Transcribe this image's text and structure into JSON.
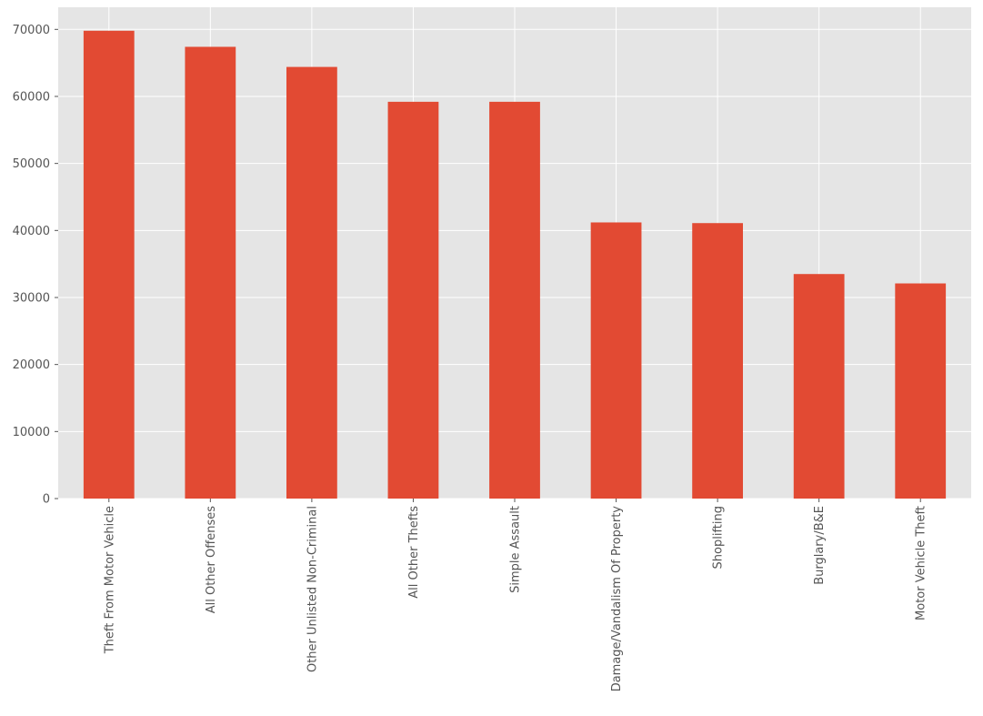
{
  "chart_data": {
    "type": "bar",
    "categories": [
      "Theft From Motor Vehicle",
      "All Other Offenses",
      "Other Unlisted Non-Criminal",
      "All Other Thefts",
      "Simple Assault",
      "Damage/Vandalism Of Property",
      "Shoplifting",
      "Burglary/B&E",
      "Motor Vehicle Theft"
    ],
    "values": [
      69800,
      67400,
      64400,
      59200,
      59200,
      41200,
      41100,
      33500,
      32100
    ],
    "color": "#e24a33",
    "ylim": [
      0,
      73300
    ],
    "yticks": [
      0,
      10000,
      20000,
      30000,
      40000,
      50000,
      60000,
      70000
    ],
    "grid": true
  }
}
